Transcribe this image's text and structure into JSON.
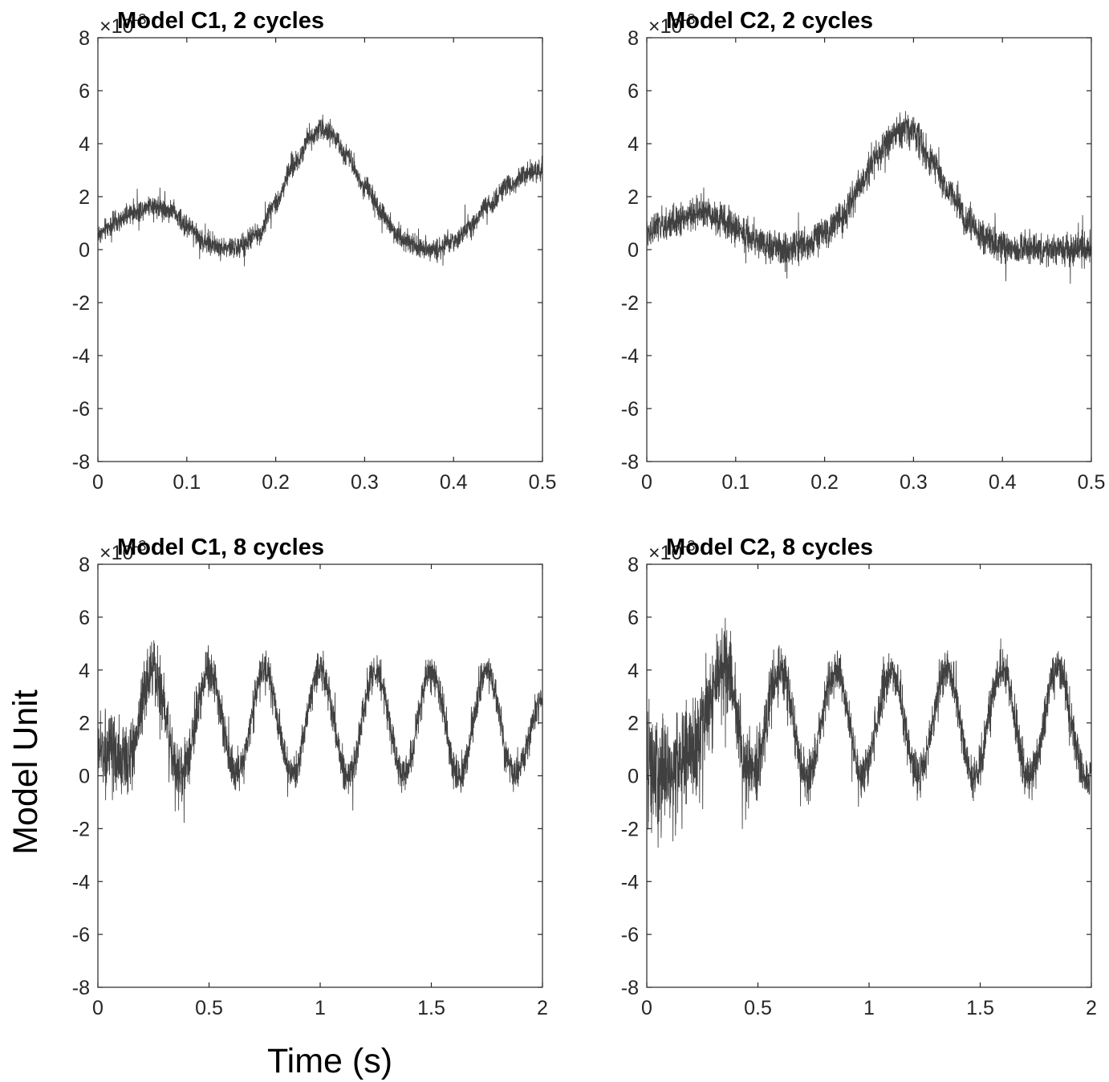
{
  "figure": {
    "ylabel": "Model Unit",
    "xlabel": "Time (s)"
  },
  "style": {
    "line_color": "#404040",
    "axis_color": "#262626",
    "background": "#ffffff"
  },
  "chart_data": [
    {
      "type": "line",
      "title": "Model  C1, 2 cycles",
      "xlim": [
        0,
        0.5
      ],
      "ylim": [
        -8,
        8
      ],
      "xticks": [
        "0",
        "0.1",
        "0.2",
        "0.3",
        "0.4",
        "0.5"
      ],
      "yticks": [
        "8",
        "6",
        "4",
        "2",
        "0",
        "-2",
        "-4",
        "-6",
        "-8"
      ],
      "y_multiplier_base": "×10",
      "y_multiplier_exponent": "-3",
      "grid": false,
      "series": [
        {
          "x": [
            0,
            0.02,
            0.04,
            0.06,
            0.08,
            0.1,
            0.12,
            0.14,
            0.16,
            0.18,
            0.2,
            0.22,
            0.24,
            0.25,
            0.26,
            0.28,
            0.3,
            0.32,
            0.34,
            0.36,
            0.38,
            0.4,
            0.42,
            0.44,
            0.46,
            0.48,
            0.5
          ],
          "y": [
            0.6,
            1.0,
            1.4,
            1.7,
            1.5,
            0.9,
            0.3,
            0.05,
            0.1,
            0.6,
            1.8,
            3.2,
            4.3,
            4.6,
            4.4,
            3.6,
            2.4,
            1.3,
            0.5,
            0.1,
            0.0,
            0.3,
            0.9,
            1.7,
            2.4,
            2.8,
            3.0
          ],
          "noise_amplitude": 0.6
        }
      ]
    },
    {
      "type": "line",
      "title": "Model C2, 2 cycles",
      "xlim": [
        0,
        0.5
      ],
      "ylim": [
        -8,
        8
      ],
      "xticks": [
        "0",
        "0.1",
        "0.2",
        "0.3",
        "0.4",
        "0.5"
      ],
      "yticks": [
        "8",
        "6",
        "4",
        "2",
        "0",
        "-2",
        "-4",
        "-6",
        "-8"
      ],
      "y_multiplier_base": "×10",
      "y_multiplier_exponent": "-3",
      "grid": false,
      "series": [
        {
          "x": [
            0,
            0.02,
            0.04,
            0.06,
            0.08,
            0.1,
            0.12,
            0.14,
            0.16,
            0.18,
            0.2,
            0.22,
            0.24,
            0.26,
            0.28,
            0.29,
            0.3,
            0.32,
            0.34,
            0.36,
            0.38,
            0.4,
            0.42,
            0.44,
            0.46,
            0.48,
            0.5
          ],
          "y": [
            0.7,
            0.9,
            1.2,
            1.4,
            1.2,
            0.8,
            0.4,
            0.1,
            0.0,
            0.2,
            0.6,
            1.3,
            2.4,
            3.6,
            4.4,
            4.6,
            4.4,
            3.4,
            2.2,
            1.1,
            0.4,
            0.1,
            0.0,
            0.0,
            0.0,
            0.0,
            0.0
          ],
          "noise_amplitude": 0.9
        }
      ]
    },
    {
      "type": "line",
      "title": "Model C1, 8 cycles",
      "xlim": [
        0,
        2
      ],
      "ylim": [
        -8,
        8
      ],
      "xticks": [
        "0",
        "0.5",
        "1",
        "1.5",
        "2"
      ],
      "yticks": [
        "8",
        "6",
        "4",
        "2",
        "0",
        "-2",
        "-4",
        "-6",
        "-8"
      ],
      "y_multiplier_base": "×10",
      "y_multiplier_exponent": "-3",
      "grid": false,
      "series": [
        {
          "x": [
            0,
            0.125,
            0.25,
            0.375,
            0.5,
            0.625,
            0.75,
            0.875,
            1.0,
            1.125,
            1.25,
            1.375,
            1.5,
            1.625,
            1.75,
            1.875,
            2.0
          ],
          "y": [
            1.0,
            0.5,
            4.0,
            0.0,
            4.0,
            0.0,
            4.0,
            0.0,
            4.0,
            0.0,
            4.0,
            0.0,
            4.0,
            0.0,
            4.0,
            0.0,
            2.8
          ],
          "noise_amplitude": [
            2.2,
            1.0
          ]
        }
      ]
    },
    {
      "type": "line",
      "title": "Model C2, 8 cycles",
      "xlim": [
        0,
        2
      ],
      "ylim": [
        -8,
        8
      ],
      "xticks": [
        "0",
        "0.5",
        "1",
        "1.5",
        "2"
      ],
      "yticks": [
        "8",
        "6",
        "4",
        "2",
        "0",
        "-2",
        "-4",
        "-6",
        "-8"
      ],
      "y_multiplier_base": "×10",
      "y_multiplier_exponent": "-3",
      "grid": false,
      "series": [
        {
          "x": [
            0,
            0.1,
            0.2,
            0.35,
            0.47,
            0.6,
            0.72,
            0.85,
            0.97,
            1.1,
            1.22,
            1.35,
            1.47,
            1.6,
            1.72,
            1.85,
            1.97,
            2.0
          ],
          "y": [
            0.0,
            0.0,
            1.0,
            4.0,
            0.0,
            4.0,
            0.0,
            4.0,
            0.0,
            4.0,
            0.0,
            4.0,
            0.0,
            4.0,
            0.0,
            4.0,
            0.0,
            0.0
          ],
          "noise_amplitude": [
            3.5,
            1.2
          ]
        }
      ]
    }
  ]
}
